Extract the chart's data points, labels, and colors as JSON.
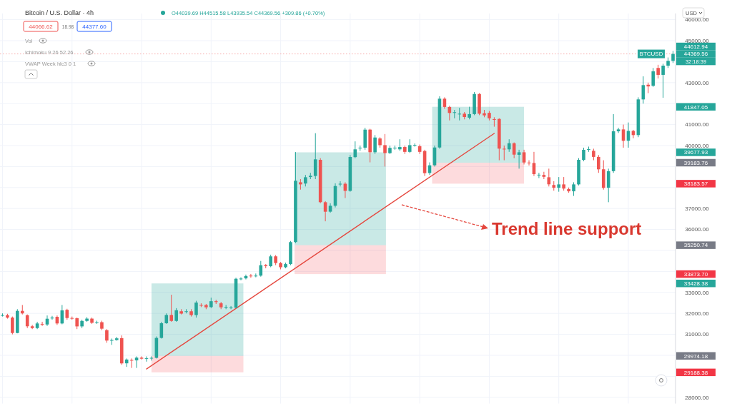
{
  "chart_data": {
    "type": "candlestick",
    "title": "Bitcoin / U.S. Dollar · 4h",
    "categories": [
      null,
      null,
      null,
      null,
      null,
      null,
      null,
      null,
      null,
      null,
      null,
      null,
      null,
      null,
      null,
      null,
      null,
      null,
      null,
      null,
      null,
      null,
      null,
      null,
      null,
      null,
      null,
      null,
      null,
      null,
      null,
      null,
      null,
      null,
      null,
      null,
      null,
      null,
      null,
      null,
      null,
      null,
      null,
      null,
      null,
      null,
      null,
      null,
      null,
      null,
      null,
      null,
      null,
      null,
      null,
      null,
      null,
      null,
      null,
      null,
      null,
      null,
      null,
      null,
      null,
      null,
      null,
      null,
      null,
      null,
      null,
      null,
      null,
      null,
      null,
      null,
      null,
      null,
      null,
      null,
      null,
      null,
      null,
      null,
      null,
      null,
      null,
      null,
      null,
      null,
      null,
      null,
      null,
      null,
      null,
      null,
      null,
      null,
      null,
      null,
      null,
      null,
      null,
      null,
      null,
      null,
      null,
      null,
      null,
      null,
      null,
      null,
      null,
      null,
      null,
      null,
      null,
      null,
      null,
      null,
      null,
      null,
      null,
      null,
      null,
      null,
      null,
      null,
      null,
      null,
      null,
      null,
      null,
      null,
      null,
      null
    ],
    "ohlc": [
      [
        31900,
        32000,
        31850,
        31920
      ],
      [
        31915,
        31980,
        31750,
        31800
      ],
      [
        31800,
        31850,
        31000,
        31065
      ],
      [
        31065,
        32200,
        31050,
        32120
      ],
      [
        32120,
        32400,
        31950,
        32000
      ],
      [
        31915,
        31950,
        31300,
        31385
      ],
      [
        31385,
        31450,
        31250,
        31300
      ],
      [
        31300,
        31600,
        31250,
        31520
      ],
      [
        31500,
        31600,
        31400,
        31470
      ],
      [
        31470,
        31900,
        31400,
        31745
      ],
      [
        31760,
        31880,
        31700,
        31800
      ],
      [
        31836,
        31900,
        31450,
        31520
      ],
      [
        31520,
        32400,
        31480,
        32143
      ],
      [
        32170,
        32220,
        31700,
        31780
      ],
      [
        31780,
        31850,
        31700,
        31770
      ],
      [
        31770,
        31800,
        31250,
        31380
      ],
      [
        31380,
        31700,
        31300,
        31640
      ],
      [
        31640,
        31820,
        31600,
        31750
      ],
      [
        31750,
        31800,
        31500,
        31550
      ],
      [
        31560,
        31650,
        31500,
        31580
      ],
      [
        31580,
        31650,
        31200,
        31270
      ],
      [
        31200,
        31250,
        30600,
        30704
      ],
      [
        30710,
        30800,
        30500,
        30730
      ],
      [
        30730,
        30880,
        30700,
        30810
      ],
      [
        30820,
        30950,
        29550,
        29616
      ],
      [
        29620,
        29850,
        29450,
        29800
      ],
      [
        29780,
        29850,
        29400,
        29770
      ],
      [
        29760,
        29950,
        29400,
        29890
      ],
      [
        29890,
        29950,
        29800,
        29840
      ],
      [
        29850,
        29950,
        29700,
        29860
      ],
      [
        29860,
        29950,
        29750,
        29880
      ],
      [
        29880,
        30900,
        29850,
        30830
      ],
      [
        30830,
        31600,
        30800,
        31530
      ],
      [
        31530,
        32000,
        31500,
        31925
      ],
      [
        31925,
        32890,
        31600,
        31640
      ],
      [
        31640,
        32250,
        31600,
        32150
      ],
      [
        32100,
        32200,
        31950,
        31990
      ],
      [
        32080,
        32200,
        32000,
        32100
      ],
      [
        32100,
        32200,
        31850,
        31920
      ],
      [
        31920,
        32600,
        31800,
        32517
      ],
      [
        32400,
        32480,
        32300,
        32380
      ],
      [
        32400,
        32450,
        32200,
        32290
      ],
      [
        32300,
        32750,
        32250,
        32580
      ],
      [
        32580,
        32650,
        32450,
        32540
      ],
      [
        32480,
        32550,
        32200,
        32290
      ],
      [
        32300,
        32400,
        32200,
        32310
      ],
      [
        32270,
        32350,
        32200,
        32280
      ],
      [
        32270,
        33700,
        32250,
        33650
      ],
      [
        33640,
        33720,
        33580,
        33660
      ],
      [
        33670,
        33850,
        33620,
        33780
      ],
      [
        33800,
        33880,
        33700,
        33790
      ],
      [
        33790,
        33900,
        33720,
        33800
      ],
      [
        33800,
        34500,
        33750,
        34296
      ],
      [
        34300,
        34350,
        34150,
        34250
      ],
      [
        34250,
        34800,
        34200,
        34718
      ],
      [
        34720,
        34780,
        34300,
        34400
      ],
      [
        34400,
        34450,
        34100,
        34200
      ],
      [
        34200,
        34420,
        34150,
        34350
      ],
      [
        34350,
        35450,
        34300,
        35398
      ],
      [
        35400,
        39690,
        35350,
        38323
      ],
      [
        38250,
        38400,
        37900,
        38150
      ],
      [
        38190,
        38600,
        38050,
        38490
      ],
      [
        38500,
        38700,
        38400,
        38560
      ],
      [
        38550,
        40590,
        38400,
        39343
      ],
      [
        39320,
        39400,
        37250,
        37303
      ],
      [
        37300,
        37350,
        36390,
        36847
      ],
      [
        36850,
        37250,
        36800,
        37130
      ],
      [
        37130,
        38200,
        37050,
        38071
      ],
      [
        38150,
        38300,
        38050,
        38180
      ],
      [
        38180,
        38250,
        37500,
        37840
      ],
      [
        37840,
        39550,
        37800,
        39456
      ],
      [
        39450,
        40200,
        39400,
        39820
      ],
      [
        39880,
        40000,
        39750,
        39900
      ],
      [
        39900,
        40850,
        39800,
        40759
      ],
      [
        40760,
        40800,
        39200,
        39683
      ],
      [
        39680,
        40500,
        39600,
        40384
      ],
      [
        40340,
        40400,
        39900,
        40020
      ],
      [
        40020,
        40550,
        39000,
        39640
      ],
      [
        39640,
        40000,
        39600,
        39890
      ],
      [
        39890,
        40000,
        39800,
        39900
      ],
      [
        39820,
        40300,
        39750,
        39930
      ],
      [
        39930,
        40000,
        39600,
        39700
      ],
      [
        39700,
        40300,
        39650,
        40020
      ],
      [
        40020,
        40100,
        39950,
        40030
      ],
      [
        39970,
        40050,
        39600,
        39700
      ],
      [
        39740,
        39800,
        38550,
        38684
      ],
      [
        38690,
        39200,
        38600,
        39058
      ],
      [
        39060,
        40000,
        39000,
        39908
      ],
      [
        39908,
        42347,
        39850,
        42235
      ],
      [
        42235,
        42300,
        41750,
        41840
      ],
      [
        41840,
        41900,
        41200,
        41554
      ],
      [
        41580,
        41700,
        41300,
        41590
      ],
      [
        41500,
        41800,
        41200,
        41520
      ],
      [
        41520,
        41600,
        41250,
        41360
      ],
      [
        41330,
        41850,
        41250,
        41500
      ],
      [
        41500,
        42550,
        41450,
        42459
      ],
      [
        42460,
        42500,
        41450,
        41520
      ],
      [
        41540,
        41700,
        41350,
        41440
      ],
      [
        41560,
        41650,
        41200,
        41300
      ],
      [
        41260,
        41350,
        40900,
        41250
      ],
      [
        41270,
        41300,
        39300,
        39854
      ],
      [
        39850,
        40000,
        39300,
        39830
      ],
      [
        39820,
        40300,
        39700,
        40112
      ],
      [
        40110,
        40150,
        39400,
        39568
      ],
      [
        39560,
        39800,
        38900,
        39680
      ],
      [
        39680,
        39800,
        39100,
        39194
      ],
      [
        39190,
        39300,
        39050,
        39180
      ],
      [
        39170,
        39700,
        38550,
        38639
      ],
      [
        38600,
        38700,
        38450,
        38610
      ],
      [
        38600,
        38750,
        38400,
        38510
      ],
      [
        38490,
        38900,
        38050,
        38153
      ],
      [
        38120,
        38300,
        37850,
        37990
      ],
      [
        37990,
        38500,
        37800,
        38150
      ],
      [
        38150,
        38500,
        37850,
        37950
      ],
      [
        37930,
        38000,
        37750,
        37820
      ],
      [
        37820,
        38250,
        37600,
        38150
      ],
      [
        38150,
        39400,
        38100,
        39320
      ],
      [
        39320,
        39900,
        39250,
        39796
      ],
      [
        39820,
        39950,
        39700,
        39830
      ],
      [
        39750,
        39850,
        39300,
        39460
      ],
      [
        39460,
        39550,
        38700,
        38867
      ],
      [
        38870,
        39300,
        37900,
        37983
      ],
      [
        37990,
        38900,
        37300,
        38776
      ],
      [
        38780,
        41500,
        38700,
        40680
      ],
      [
        40680,
        40850,
        40600,
        40770
      ],
      [
        40770,
        41000,
        39900,
        40228
      ],
      [
        40230,
        41100,
        39900,
        40700
      ],
      [
        40700,
        40750,
        40350,
        40500
      ],
      [
        40500,
        42300,
        40400,
        42201
      ],
      [
        42200,
        43300,
        42000,
        42881
      ],
      [
        42900,
        43000,
        42500,
        42820
      ],
      [
        42850,
        43700,
        42800,
        43540
      ],
      [
        43700,
        43850,
        43200,
        43370
      ],
      [
        43370,
        43900,
        42280,
        43810
      ],
      [
        43810,
        44200,
        43700,
        44039.69
      ],
      [
        44039.69,
        44515.58,
        43935.54,
        44369.56
      ]
    ],
    "series": [
      {
        "type": "line",
        "color": "#e5483f",
        "values": [
          null,
          null,
          null,
          null,
          null,
          null,
          null,
          null,
          null,
          null,
          null,
          null,
          null,
          null,
          null,
          null,
          null,
          null,
          null,
          null,
          null,
          null,
          null,
          null,
          null,
          null,
          null,
          null,
          null,
          29350,
          null,
          null,
          null,
          null,
          null,
          null,
          null,
          null,
          null,
          null,
          null,
          null,
          null,
          null,
          null,
          null,
          null,
          null,
          null,
          null,
          null,
          null,
          null,
          null,
          null,
          null,
          null,
          null,
          null,
          null,
          null,
          null,
          null,
          null,
          null,
          null,
          null,
          null,
          null,
          null,
          null,
          null,
          null,
          null,
          null,
          null,
          null,
          null,
          null,
          null,
          null,
          null,
          null,
          null,
          null,
          null,
          null,
          null,
          null,
          null,
          null,
          null,
          null,
          null,
          null,
          null,
          null,
          null,
          null,
          40580,
          null,
          null,
          null,
          null,
          null,
          null,
          null,
          null,
          null,
          null,
          null,
          null,
          null,
          null,
          null,
          null,
          null,
          null,
          null,
          null,
          null,
          null,
          null,
          null,
          null,
          null,
          null,
          null,
          null,
          null,
          null,
          null,
          null,
          null,
          null,
          null
        ]
      }
    ],
    "ylim": [
      27700,
      46300
    ],
    "yticks": [
      {
        "value": 28000,
        "label": "28000.00"
      },
      {
        "value": 29000,
        "label": null
      },
      {
        "value": 30000,
        "label": null
      },
      {
        "value": 31000,
        "label": "31000.00"
      },
      {
        "value": 32000,
        "label": "32000.00"
      },
      {
        "value": 33000,
        "label": "33000.00"
      },
      {
        "value": 34000,
        "label": null
      },
      {
        "value": 35000,
        "label": null
      },
      {
        "value": 36000,
        "label": "36000.00"
      },
      {
        "value": 37000,
        "label": "37000.00"
      },
      {
        "value": 38000,
        "label": null
      },
      {
        "value": 39000,
        "label": null
      },
      {
        "value": 40000,
        "label": "40000.00"
      },
      {
        "value": 41000,
        "label": "41000.00"
      },
      {
        "value": 42000,
        "label": null
      },
      {
        "value": 43000,
        "label": "43000.00"
      },
      {
        "value": 44000,
        "label": null
      },
      {
        "value": 45000,
        "label": "45000.00"
      },
      {
        "value": 46000,
        "label": "46000.00"
      }
    ],
    "tick_labels": "y",
    "grid": true,
    "ref_lines": [
      {
        "axis": "y",
        "value": 44369.56,
        "label": "44369.56",
        "color": "#f7a8a8",
        "line_style": "dotted"
      }
    ],
    "annotations": [
      "O44039.69 H44515.58 L43935.54 C44369.56 +309.86 (+0.70%)",
      "44066.62",
      "18.98",
      "44377.60",
      "Vol",
      "Ichimoku 9 26 52 26",
      "VWAP Week hlc3 0 1",
      "USD",
      "BTCUSD",
      "32:18:39",
      "Trend line support",
      "44612.94",
      "41847.05",
      "39677.93",
      "39183.76",
      "38183.57",
      "35250.74",
      "33873.70",
      "33428.38",
      "29974.18",
      "29188.38"
    ]
  }
}
